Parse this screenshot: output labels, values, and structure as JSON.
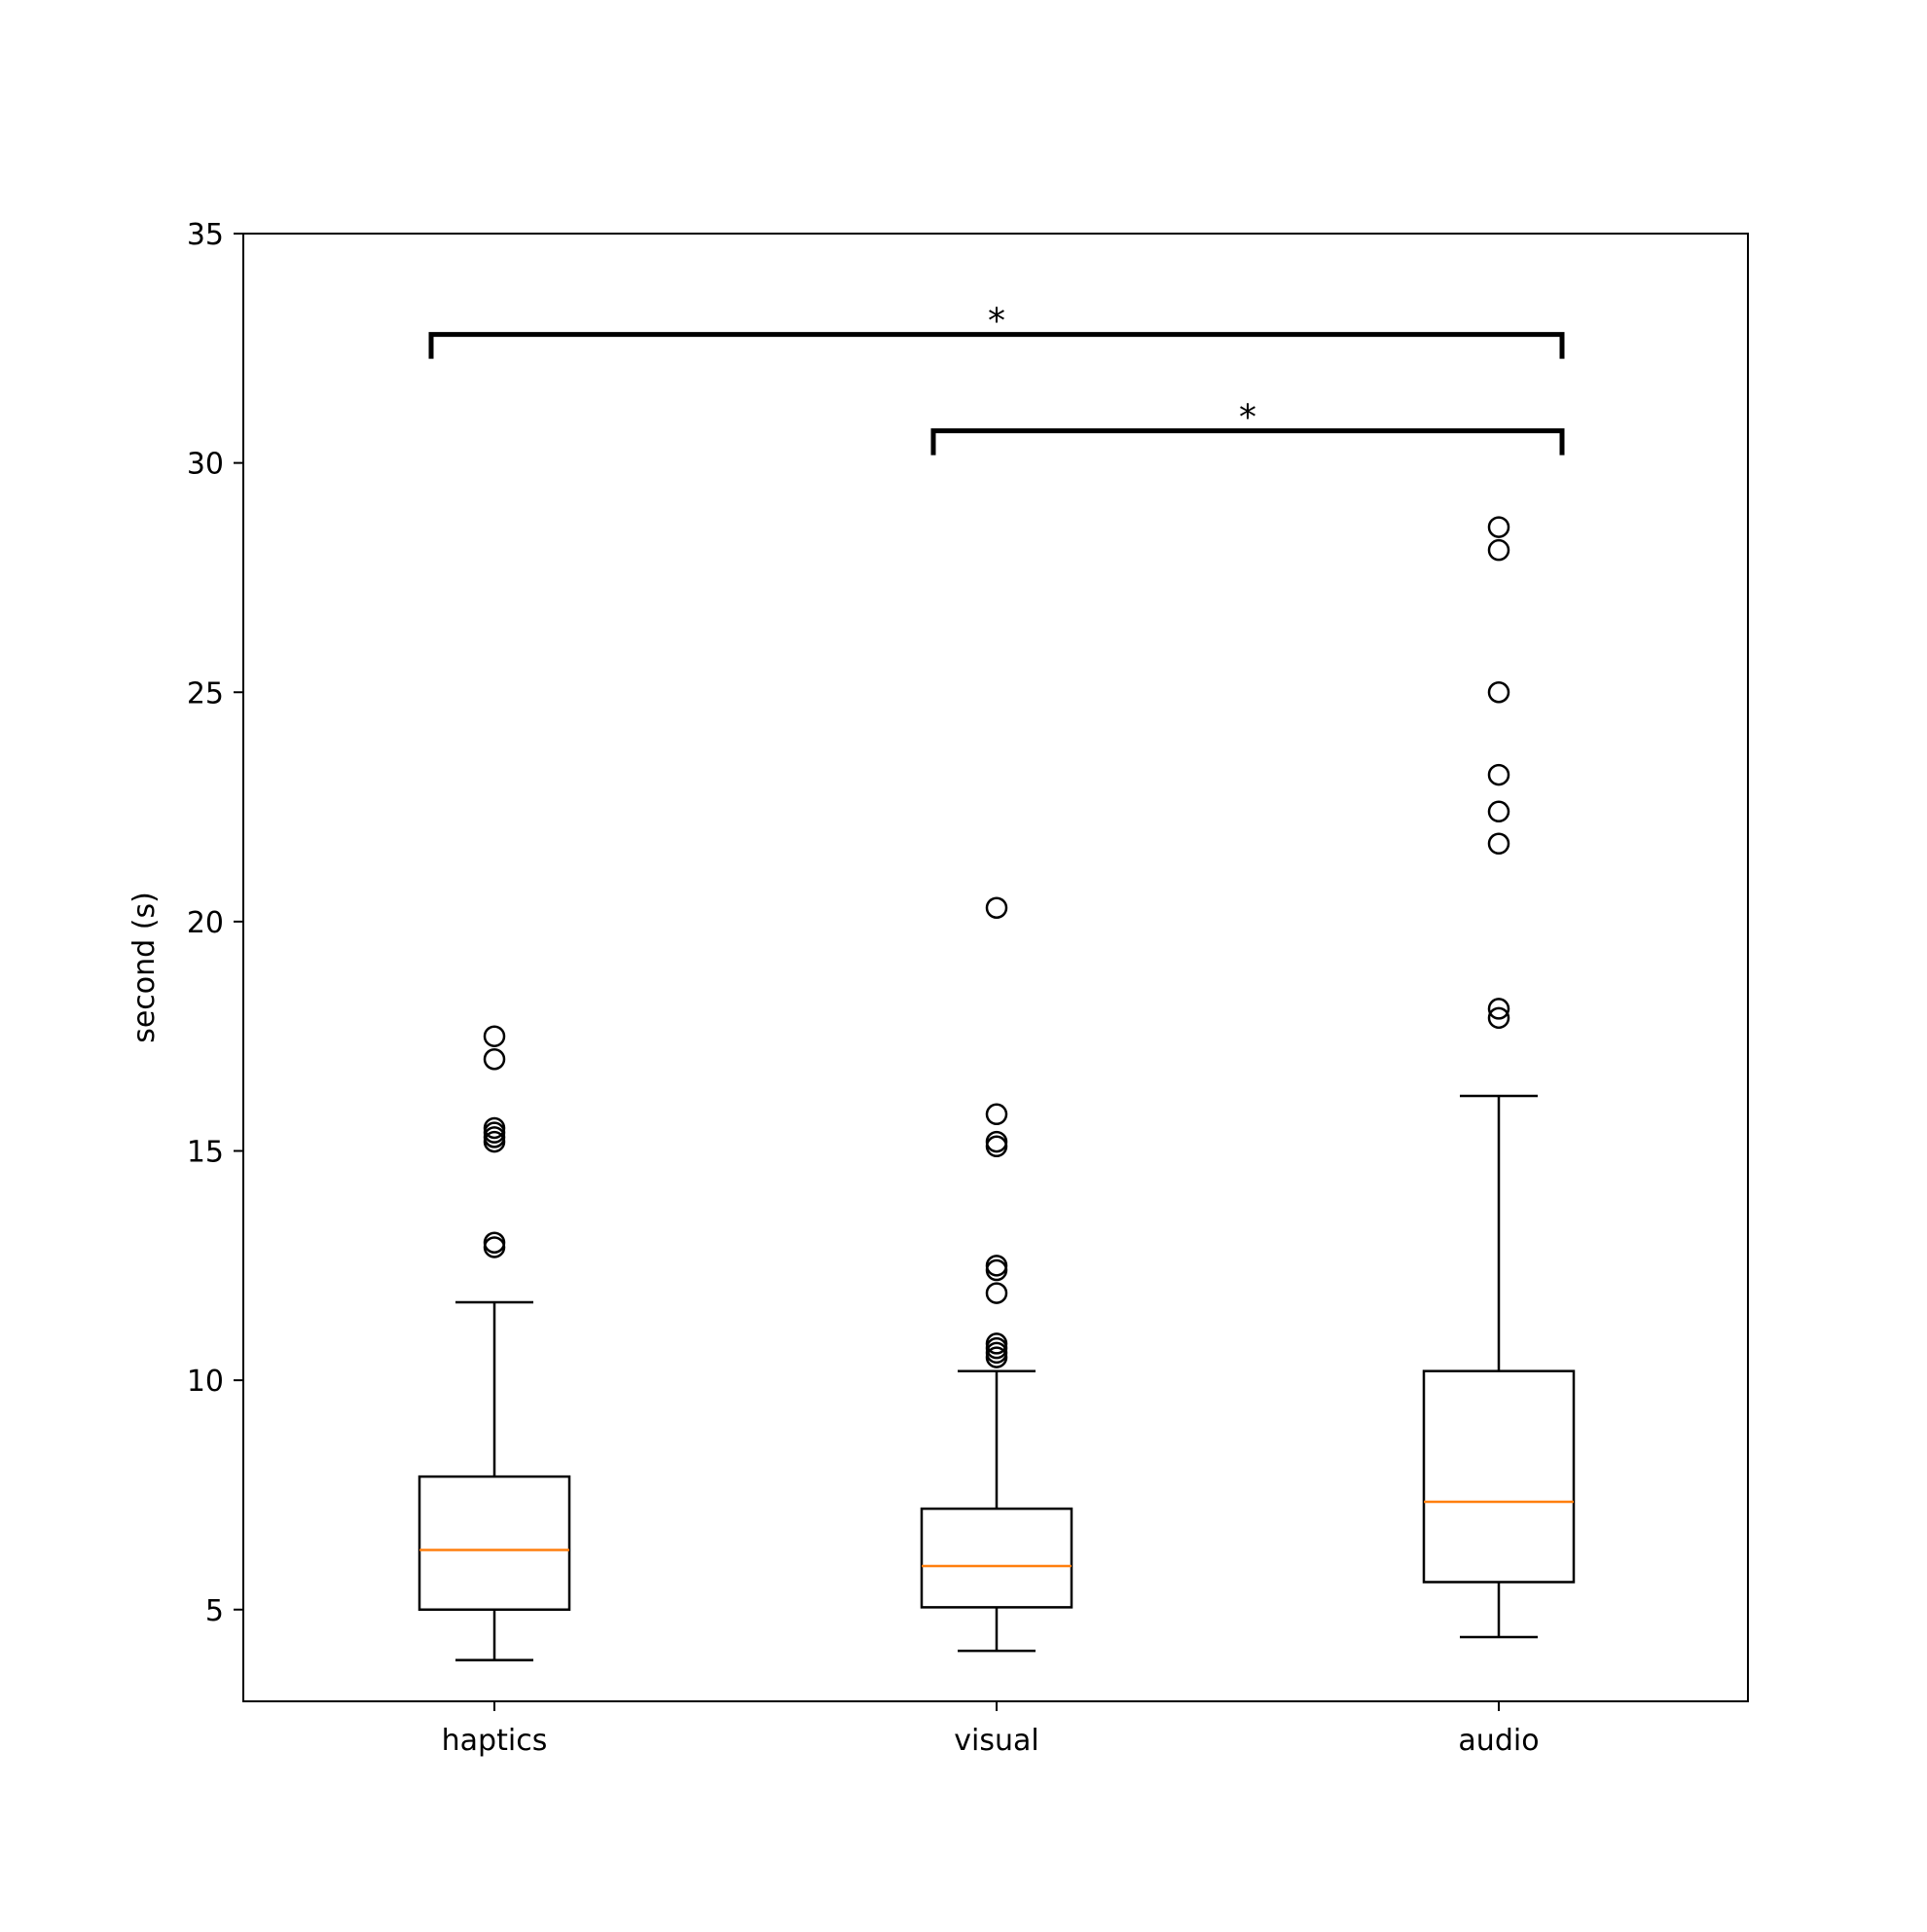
{
  "chart_data": {
    "type": "box",
    "title": "",
    "xlabel": "",
    "ylabel": "second (s)",
    "ylim": [
      3.0,
      35.0
    ],
    "y_ticks": [
      5,
      10,
      15,
      20,
      25,
      30,
      35
    ],
    "categories": [
      "haptics",
      "visual",
      "audio"
    ],
    "boxes": [
      {
        "category": "haptics",
        "whislo": 3.9,
        "q1": 5.0,
        "median": 6.3,
        "q3": 7.9,
        "whishi": 11.7,
        "fliers": [
          12.9,
          13.0,
          15.2,
          15.3,
          15.4,
          15.5,
          17.0,
          17.5
        ]
      },
      {
        "category": "visual",
        "whislo": 4.1,
        "q1": 5.05,
        "median": 5.95,
        "q3": 7.2,
        "whishi": 10.2,
        "fliers": [
          10.5,
          10.6,
          10.7,
          10.8,
          11.9,
          12.4,
          12.5,
          15.1,
          15.2,
          15.8,
          20.3
        ]
      },
      {
        "category": "audio",
        "whislo": 4.4,
        "q1": 5.6,
        "median": 7.35,
        "q3": 10.2,
        "whishi": 16.2,
        "fliers": [
          17.9,
          18.1,
          21.7,
          22.4,
          23.2,
          25.0,
          28.1,
          28.6
        ]
      }
    ],
    "significance": [
      {
        "from": "haptics",
        "to": "audio",
        "label": "*",
        "y": 32.8
      },
      {
        "from": "visual",
        "to": "audio",
        "label": "*",
        "y": 30.7
      }
    ],
    "colors": {
      "box": "#000000",
      "median": "#ff7f0e",
      "bracket": "#000000"
    },
    "grid": false,
    "legend": "none"
  }
}
